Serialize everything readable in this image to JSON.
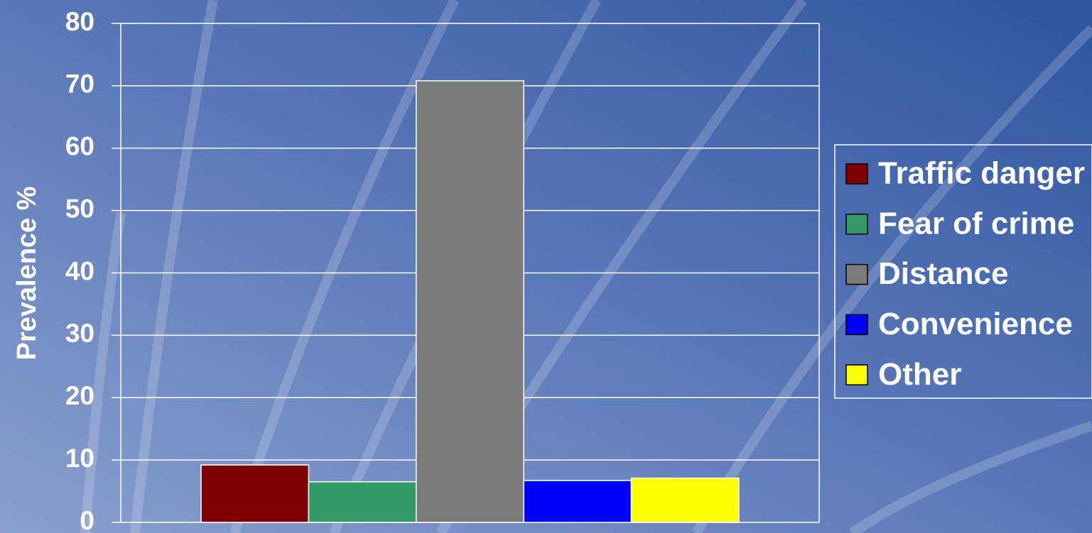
{
  "chart_data": {
    "type": "bar",
    "y_axis_label": "Prevalence  %",
    "categories": [
      null
    ],
    "series": [
      {
        "name": "Traffic danger",
        "color": "#800000",
        "values": [
          9.2
        ]
      },
      {
        "name": "Fear of crime",
        "color": "#339966",
        "values": [
          6.5
        ]
      },
      {
        "name": "Distance",
        "color": "#7a7a7a",
        "values": [
          70.8
        ]
      },
      {
        "name": "Convenience",
        "color": "#0000ff",
        "values": [
          6.7
        ]
      },
      {
        "name": "Other",
        "color": "#ffff00",
        "values": [
          7.1
        ]
      }
    ],
    "ylim": [
      0,
      80
    ],
    "yticks": [
      0,
      10,
      20,
      30,
      40,
      50,
      60,
      70,
      80
    ],
    "grid": true,
    "legend": "right"
  }
}
